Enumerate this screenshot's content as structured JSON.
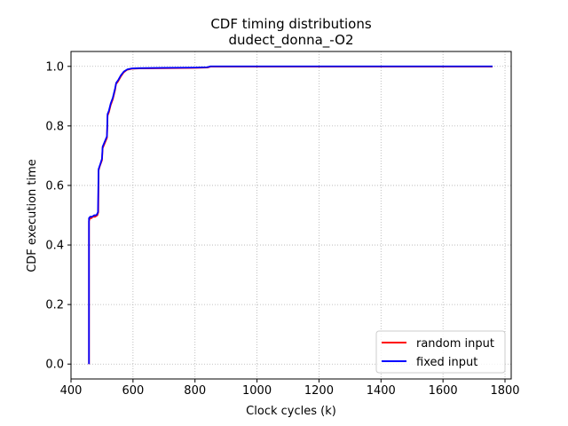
{
  "chart_data": {
    "type": "line",
    "title": "CDF timing distributions",
    "subtitle": "dudect_donna_-O2",
    "xlabel": "Clock cycles (k)",
    "ylabel": "CDF execution time",
    "xlim": [
      400,
      1820
    ],
    "ylim": [
      -0.05,
      1.05
    ],
    "xticks": [
      400,
      600,
      800,
      1000,
      1200,
      1400,
      1600,
      1800
    ],
    "yticks": [
      0.0,
      0.2,
      0.4,
      0.6,
      0.8,
      1.0
    ],
    "grid": true,
    "legend_position": "lower-right",
    "series": [
      {
        "name": "random input",
        "color": "#ff0000",
        "points": [
          [
            458,
            0.0
          ],
          [
            458,
            0.48
          ],
          [
            461,
            0.49
          ],
          [
            466,
            0.49
          ],
          [
            470,
            0.495
          ],
          [
            478,
            0.495
          ],
          [
            485,
            0.5
          ],
          [
            488,
            0.51
          ],
          [
            489,
            0.65
          ],
          [
            493,
            0.665
          ],
          [
            500,
            0.685
          ],
          [
            502,
            0.725
          ],
          [
            508,
            0.74
          ],
          [
            516,
            0.76
          ],
          [
            518,
            0.835
          ],
          [
            522,
            0.845
          ],
          [
            528,
            0.87
          ],
          [
            535,
            0.89
          ],
          [
            542,
            0.92
          ],
          [
            545,
            0.94
          ],
          [
            552,
            0.95
          ],
          [
            560,
            0.965
          ],
          [
            570,
            0.98
          ],
          [
            580,
            0.988
          ],
          [
            595,
            0.992
          ],
          [
            620,
            0.993
          ],
          [
            700,
            0.994
          ],
          [
            800,
            0.995
          ],
          [
            840,
            0.996
          ],
          [
            850,
            0.999
          ],
          [
            1000,
            0.999
          ],
          [
            1500,
            0.999
          ],
          [
            1760,
            0.999
          ]
        ]
      },
      {
        "name": "fixed input",
        "color": "#0000ff",
        "points": [
          [
            458,
            0.0
          ],
          [
            458,
            0.49
          ],
          [
            462,
            0.495
          ],
          [
            468,
            0.495
          ],
          [
            475,
            0.5
          ],
          [
            482,
            0.5
          ],
          [
            487,
            0.51
          ],
          [
            489,
            0.655
          ],
          [
            494,
            0.67
          ],
          [
            500,
            0.69
          ],
          [
            502,
            0.73
          ],
          [
            508,
            0.745
          ],
          [
            516,
            0.765
          ],
          [
            518,
            0.84
          ],
          [
            522,
            0.85
          ],
          [
            528,
            0.875
          ],
          [
            535,
            0.895
          ],
          [
            542,
            0.925
          ],
          [
            546,
            0.945
          ],
          [
            553,
            0.955
          ],
          [
            561,
            0.97
          ],
          [
            571,
            0.983
          ],
          [
            582,
            0.99
          ],
          [
            596,
            0.993
          ],
          [
            620,
            0.994
          ],
          [
            700,
            0.995
          ],
          [
            800,
            0.996
          ],
          [
            840,
            0.997
          ],
          [
            850,
            1.0
          ],
          [
            1000,
            1.0
          ],
          [
            1500,
            1.0
          ],
          [
            1760,
            1.0
          ]
        ]
      }
    ]
  }
}
